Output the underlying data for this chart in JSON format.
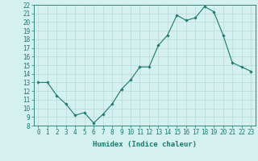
{
  "x": [
    0,
    1,
    2,
    3,
    4,
    5,
    6,
    7,
    8,
    9,
    10,
    11,
    12,
    13,
    14,
    15,
    16,
    17,
    18,
    19,
    20,
    21,
    22,
    23
  ],
  "y": [
    13.0,
    13.0,
    11.5,
    10.5,
    9.2,
    9.5,
    8.3,
    9.3,
    10.5,
    12.2,
    13.3,
    14.8,
    14.8,
    17.3,
    18.5,
    20.8,
    20.2,
    20.5,
    21.8,
    21.2,
    18.5,
    15.3,
    14.8,
    14.3
  ],
  "line_color": "#1a7a6e",
  "marker": "D",
  "marker_size": 1.8,
  "linewidth": 0.8,
  "bg_color": "#d4f0ef",
  "grid_color": "#b8d8d6",
  "xlabel": "Humidex (Indice chaleur)",
  "ylim": [
    8,
    22
  ],
  "xlim": [
    -0.5,
    23.5
  ],
  "xtick_labels": [
    "0",
    "1",
    "2",
    "3",
    "4",
    "5",
    "6",
    "7",
    "8",
    "9",
    "10",
    "11",
    "12",
    "13",
    "14",
    "15",
    "16",
    "17",
    "18",
    "19",
    "20",
    "21",
    "22",
    "23"
  ],
  "ytick_vals": [
    8,
    9,
    10,
    11,
    12,
    13,
    14,
    15,
    16,
    17,
    18,
    19,
    20,
    21,
    22
  ],
  "xlabel_fontsize": 6.5,
  "tick_fontsize": 5.5
}
